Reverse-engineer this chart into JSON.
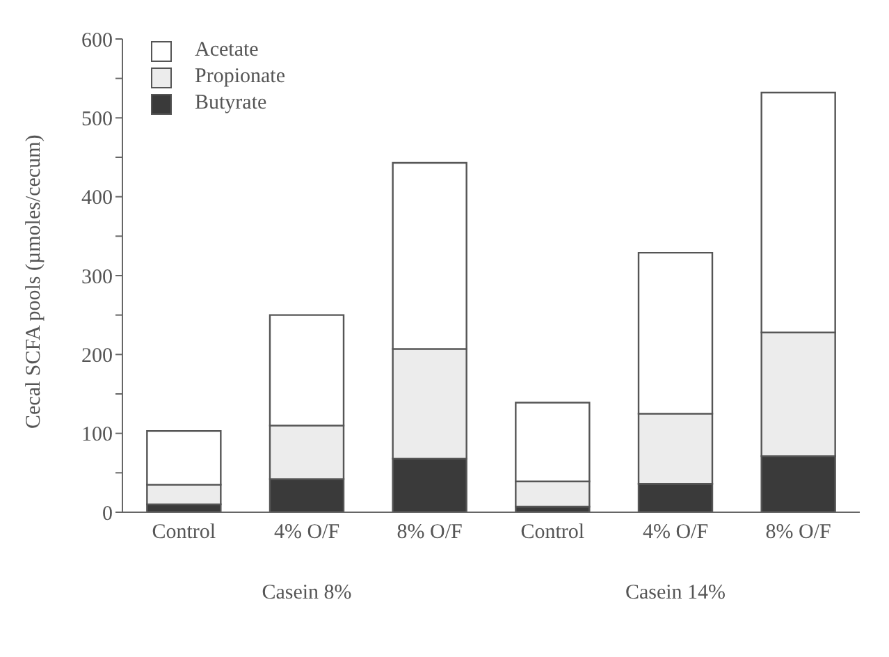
{
  "chart_data": {
    "type": "bar",
    "stacked": true,
    "ylabel": "Cecal SCFA pools (µmoles/cecum)",
    "categories": [
      "Control",
      "4% O/F",
      "8% O/F",
      "Control",
      "4% O/F",
      "8% O/F"
    ],
    "series": [
      {
        "name": "Butyrate",
        "color": "#3a3a3a",
        "values": [
          10,
          42,
          68,
          7,
          36,
          71
        ]
      },
      {
        "name": "Propionate",
        "color": "#ececec",
        "values": [
          25,
          68,
          139,
          32,
          89,
          157
        ]
      },
      {
        "name": "Acetate",
        "color": "#ffffff",
        "values": [
          68,
          140,
          236,
          100,
          204,
          304
        ]
      }
    ],
    "ylim": [
      0,
      600
    ],
    "yticks": [
      0,
      {
        "value": 50,
        "label": null
      },
      100,
      {
        "value": 150,
        "label": null
      },
      200,
      {
        "value": 250,
        "label": null
      },
      300,
      {
        "value": 350,
        "label": null
      },
      400,
      {
        "value": 450,
        "label": null
      },
      500,
      {
        "value": 550,
        "label": null
      },
      600
    ],
    "legend": "top left",
    "grid": false,
    "annotations": [
      "Casein 8%",
      "Casein 14%"
    ]
  }
}
